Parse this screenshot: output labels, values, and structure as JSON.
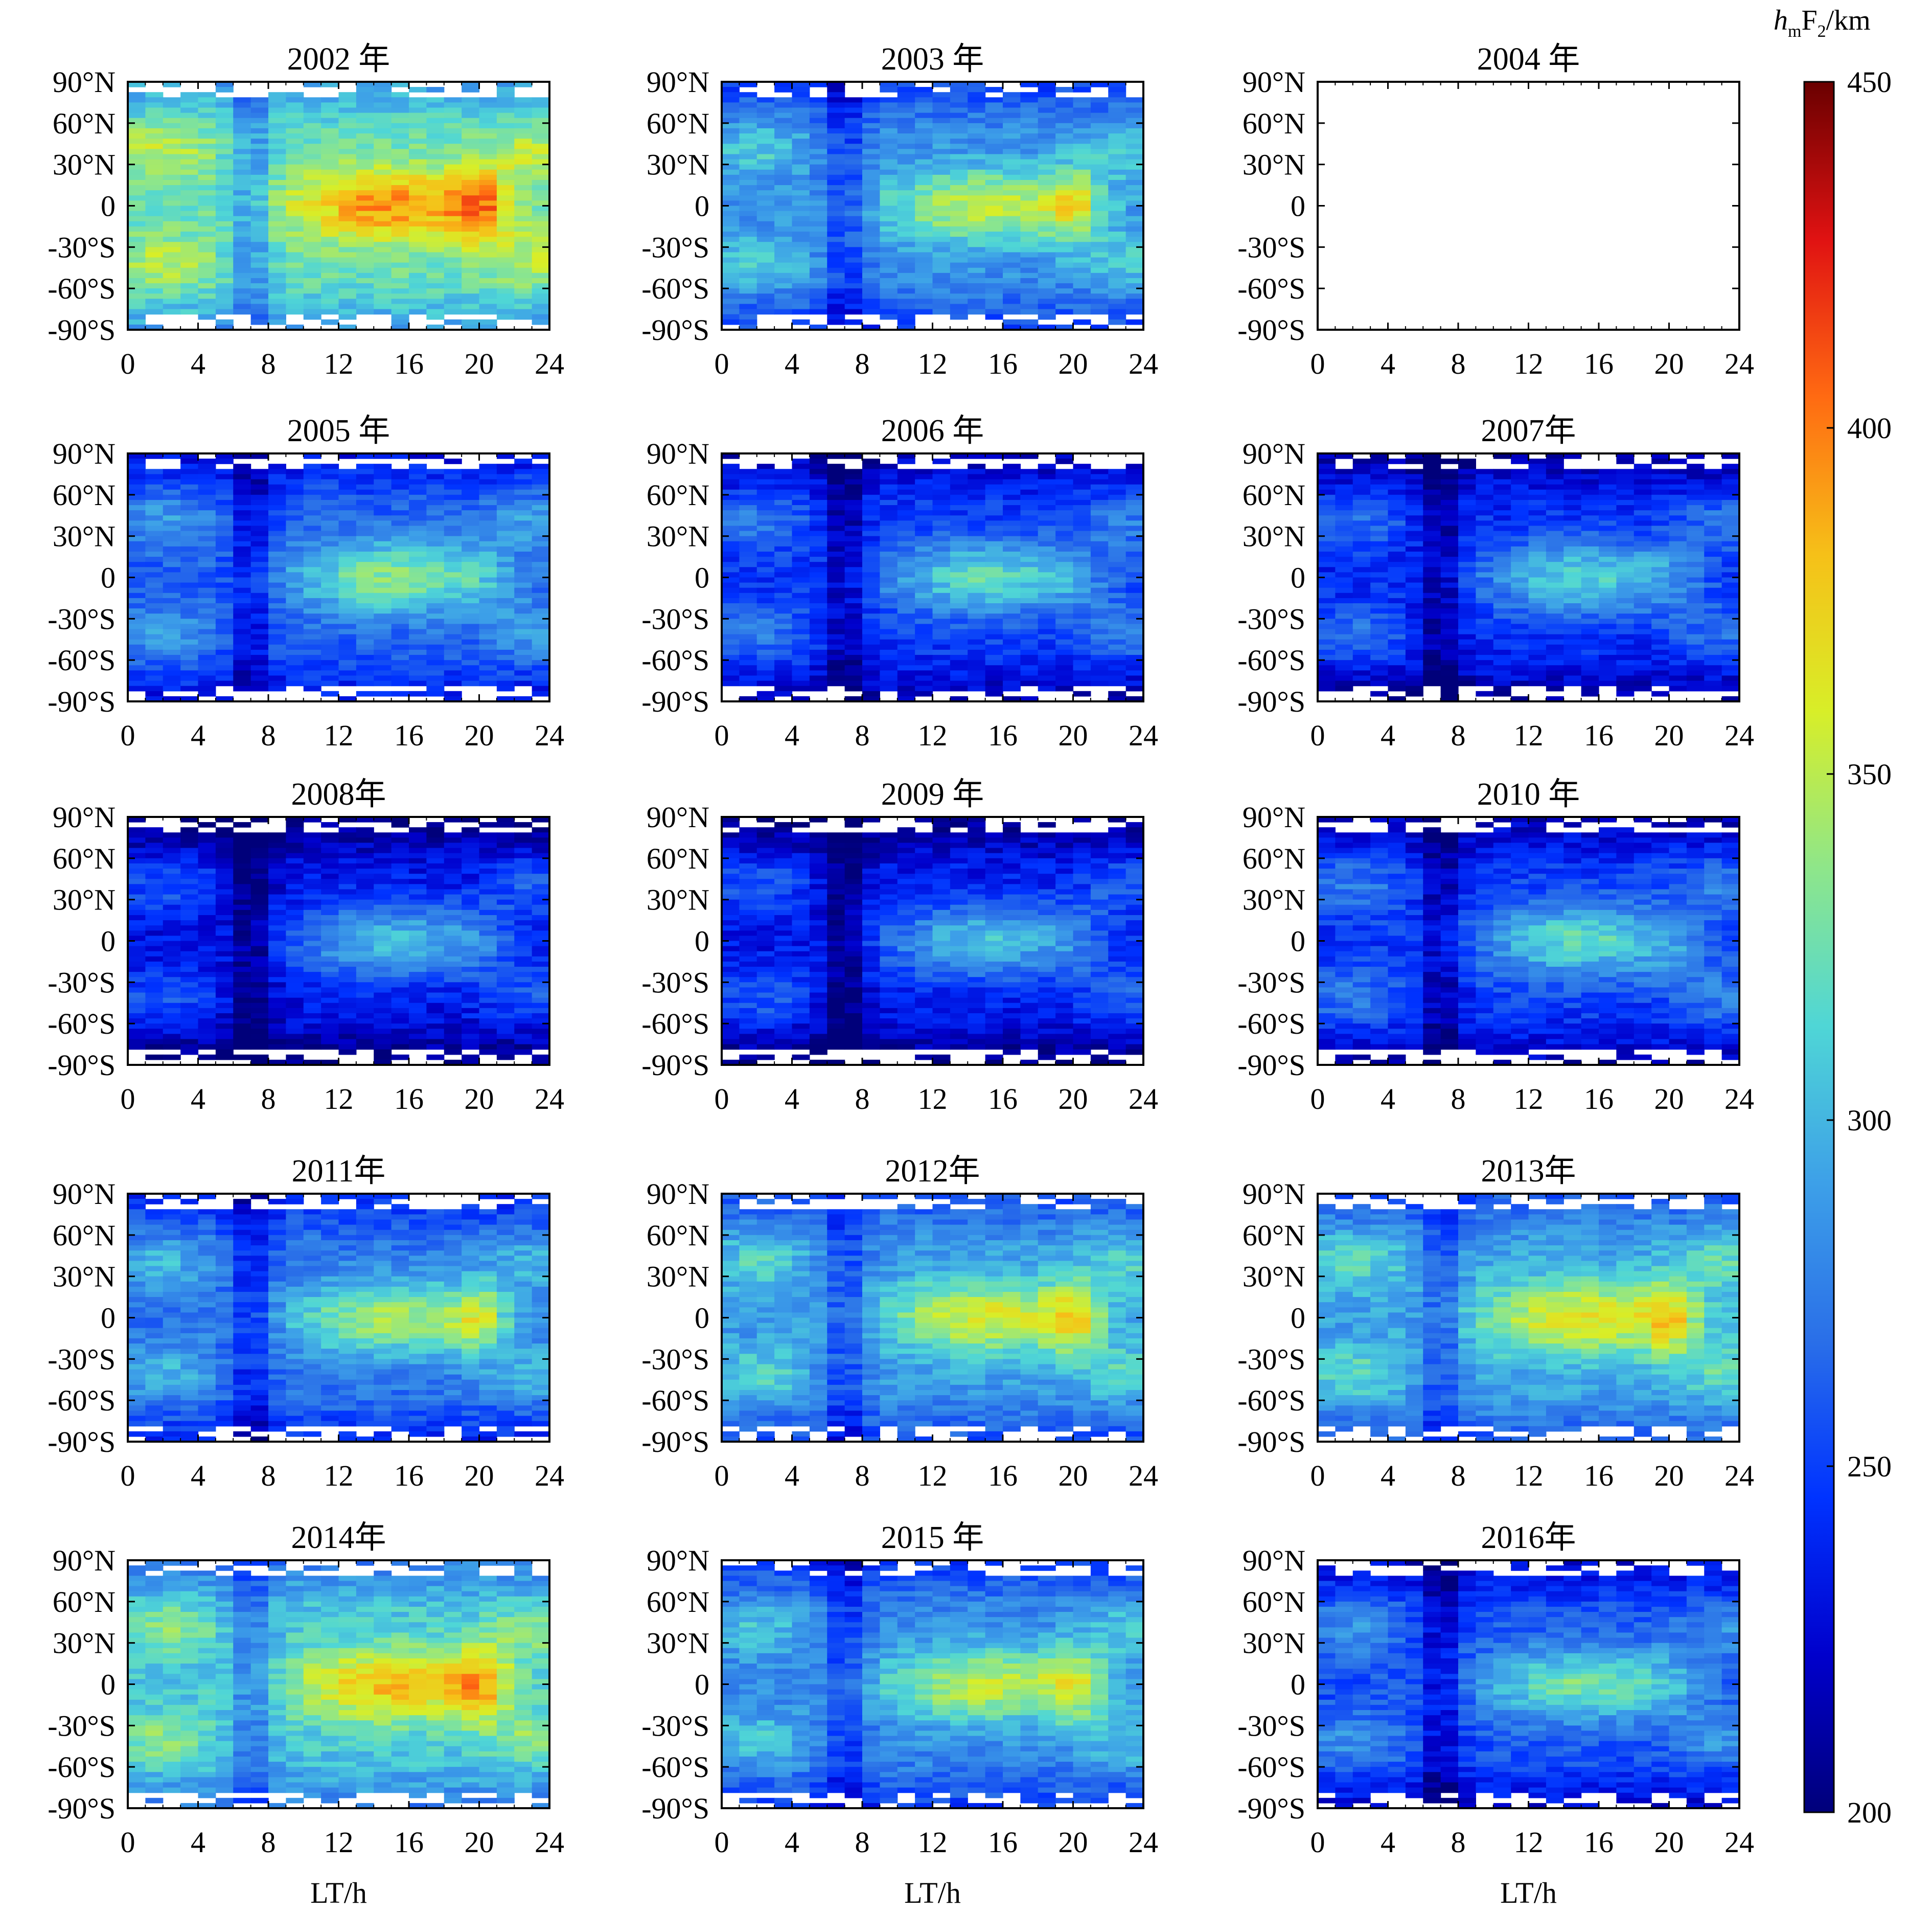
{
  "figure": {
    "x_axis_label": "LT/h",
    "colorbar": {
      "label_main": "h",
      "label_sub": "m",
      "label_rest": "F",
      "label_sub2": "2",
      "label_unit": "/km",
      "min": 200,
      "max": 450,
      "ticks": [
        200,
        250,
        300,
        350,
        400,
        450
      ],
      "tick_labels": [
        "200",
        "250",
        "300",
        "350",
        "400",
        "450"
      ],
      "palette": [
        "#00007a",
        "#0000cc",
        "#0033ff",
        "#2a6fe8",
        "#3da0e8",
        "#4fd6d6",
        "#8ee68a",
        "#d8ee28",
        "#f6c018",
        "#ff6a12",
        "#e01212",
        "#6a0000"
      ]
    }
  },
  "chart_data": [
    {
      "type": "heatmap",
      "title": "2002 年",
      "empty": false,
      "level": 360,
      "xlabel": "LT/h",
      "ylabel": "",
      "xlim": [
        0,
        24
      ],
      "ylim": [
        -90,
        90
      ],
      "xticks": [
        0,
        4,
        8,
        12,
        16,
        20,
        24
      ],
      "xtick_labels": [
        "0",
        "4",
        "8",
        "12",
        "16",
        "20",
        "24"
      ],
      "yticks": [
        90,
        60,
        30,
        0,
        -30,
        -60,
        -90
      ],
      "ytick_labels": [
        "90°N",
        "60°N",
        "30°N",
        "0",
        "-30°S",
        "-60°S",
        "-90°S"
      ]
    },
    {
      "type": "heatmap",
      "title": "2003 年",
      "empty": false,
      "level": 320,
      "xlabel": "LT/h",
      "ylabel": "",
      "xlim": [
        0,
        24
      ],
      "ylim": [
        -90,
        90
      ],
      "xticks": [
        0,
        4,
        8,
        12,
        16,
        20,
        24
      ],
      "xtick_labels": [
        "0",
        "4",
        "8",
        "12",
        "16",
        "20",
        "24"
      ],
      "yticks": [
        90,
        60,
        30,
        0,
        -30,
        -60,
        -90
      ],
      "ytick_labels": [
        "90°N",
        "60°N",
        "30°N",
        "0",
        "-30°S",
        "-60°S",
        "-90°S"
      ]
    },
    {
      "type": "heatmap",
      "title": "2004 年",
      "empty": true,
      "level": 0,
      "xlabel": "LT/h",
      "ylabel": "",
      "xlim": [
        0,
        24
      ],
      "ylim": [
        -90,
        90
      ],
      "xticks": [
        0,
        4,
        8,
        12,
        16,
        20,
        24
      ],
      "xtick_labels": [
        "0",
        "4",
        "8",
        "12",
        "16",
        "20",
        "24"
      ],
      "yticks": [
        90,
        60,
        30,
        0,
        -30,
        -60,
        -90
      ],
      "ytick_labels": [
        "90°N",
        "60°N",
        "30°N",
        "0",
        "-30°S",
        "-60°S",
        "-90°S"
      ]
    },
    {
      "type": "heatmap",
      "title": "2005 年",
      "empty": false,
      "level": 300,
      "xlabel": "LT/h",
      "ylabel": "",
      "xlim": [
        0,
        24
      ],
      "ylim": [
        -90,
        90
      ],
      "xticks": [
        0,
        4,
        8,
        12,
        16,
        20,
        24
      ],
      "xtick_labels": [
        "0",
        "4",
        "8",
        "12",
        "16",
        "20",
        "24"
      ],
      "yticks": [
        90,
        60,
        30,
        0,
        -30,
        -60,
        -90
      ],
      "ytick_labels": [
        "90°N",
        "60°N",
        "30°N",
        "0",
        "-30°S",
        "-60°S",
        "-90°S"
      ]
    },
    {
      "type": "heatmap",
      "title": "2006 年",
      "empty": false,
      "level": 285,
      "xlabel": "LT/h",
      "ylabel": "",
      "xlim": [
        0,
        24
      ],
      "ylim": [
        -90,
        90
      ],
      "xticks": [
        0,
        4,
        8,
        12,
        16,
        20,
        24
      ],
      "xtick_labels": [
        "0",
        "4",
        "8",
        "12",
        "16",
        "20",
        "24"
      ],
      "yticks": [
        90,
        60,
        30,
        0,
        -30,
        -60,
        -90
      ],
      "ytick_labels": [
        "90°N",
        "60°N",
        "30°N",
        "0",
        "-30°S",
        "-60°S",
        "-90°S"
      ]
    },
    {
      "type": "heatmap",
      "title": "2007年",
      "empty": false,
      "level": 280,
      "xlabel": "LT/h",
      "ylabel": "",
      "xlim": [
        0,
        24
      ],
      "ylim": [
        -90,
        90
      ],
      "xticks": [
        0,
        4,
        8,
        12,
        16,
        20,
        24
      ],
      "xtick_labels": [
        "0",
        "4",
        "8",
        "12",
        "16",
        "20",
        "24"
      ],
      "yticks": [
        90,
        60,
        30,
        0,
        -30,
        -60,
        -90
      ],
      "ytick_labels": [
        "90°N",
        "60°N",
        "30°N",
        "0",
        "-30°S",
        "-60°S",
        "-90°S"
      ]
    },
    {
      "type": "heatmap",
      "title": "2008年",
      "empty": false,
      "level": 270,
      "xlabel": "LT/h",
      "ylabel": "",
      "xlim": [
        0,
        24
      ],
      "ylim": [
        -90,
        90
      ],
      "xticks": [
        0,
        4,
        8,
        12,
        16,
        20,
        24
      ],
      "xtick_labels": [
        "0",
        "4",
        "8",
        "12",
        "16",
        "20",
        "24"
      ],
      "yticks": [
        90,
        60,
        30,
        0,
        -30,
        -60,
        -90
      ],
      "ytick_labels": [
        "90°N",
        "60°N",
        "30°N",
        "0",
        "-30°S",
        "-60°S",
        "-90°S"
      ]
    },
    {
      "type": "heatmap",
      "title": "2009 年",
      "empty": false,
      "level": 272,
      "xlabel": "LT/h",
      "ylabel": "",
      "xlim": [
        0,
        24
      ],
      "ylim": [
        -90,
        90
      ],
      "xticks": [
        0,
        4,
        8,
        12,
        16,
        20,
        24
      ],
      "xtick_labels": [
        "0",
        "4",
        "8",
        "12",
        "16",
        "20",
        "24"
      ],
      "yticks": [
        90,
        60,
        30,
        0,
        -30,
        -60,
        -90
      ],
      "ytick_labels": [
        "90°N",
        "60°N",
        "30°N",
        "0",
        "-30°S",
        "-60°S",
        "-90°S"
      ]
    },
    {
      "type": "heatmap",
      "title": "2010 年",
      "empty": false,
      "level": 285,
      "xlabel": "LT/h",
      "ylabel": "",
      "xlim": [
        0,
        24
      ],
      "ylim": [
        -90,
        90
      ],
      "xticks": [
        0,
        4,
        8,
        12,
        16,
        20,
        24
      ],
      "xtick_labels": [
        "0",
        "4",
        "8",
        "12",
        "16",
        "20",
        "24"
      ],
      "yticks": [
        90,
        60,
        30,
        0,
        -30,
        -60,
        -90
      ],
      "ytick_labels": [
        "90°N",
        "60°N",
        "30°N",
        "0",
        "-30°S",
        "-60°S",
        "-90°S"
      ]
    },
    {
      "type": "heatmap",
      "title": "2011年",
      "empty": false,
      "level": 310,
      "xlabel": "LT/h",
      "ylabel": "",
      "xlim": [
        0,
        24
      ],
      "ylim": [
        -90,
        90
      ],
      "xticks": [
        0,
        4,
        8,
        12,
        16,
        20,
        24
      ],
      "xtick_labels": [
        "0",
        "4",
        "8",
        "12",
        "16",
        "20",
        "24"
      ],
      "yticks": [
        90,
        60,
        30,
        0,
        -30,
        -60,
        -90
      ],
      "ytick_labels": [
        "90°N",
        "60°N",
        "30°N",
        "0",
        "-30°S",
        "-60°S",
        "-90°S"
      ]
    },
    {
      "type": "heatmap",
      "title": "2012年",
      "empty": false,
      "level": 325,
      "xlabel": "LT/h",
      "ylabel": "",
      "xlim": [
        0,
        24
      ],
      "ylim": [
        -90,
        90
      ],
      "xticks": [
        0,
        4,
        8,
        12,
        16,
        20,
        24
      ],
      "xtick_labels": [
        "0",
        "4",
        "8",
        "12",
        "16",
        "20",
        "24"
      ],
      "yticks": [
        90,
        60,
        30,
        0,
        -30,
        -60,
        -90
      ],
      "ytick_labels": [
        "90°N",
        "60°N",
        "30°N",
        "0",
        "-30°S",
        "-60°S",
        "-90°S"
      ]
    },
    {
      "type": "heatmap",
      "title": "2013年",
      "empty": false,
      "level": 330,
      "xlabel": "LT/h",
      "ylabel": "",
      "xlim": [
        0,
        24
      ],
      "ylim": [
        -90,
        90
      ],
      "xticks": [
        0,
        4,
        8,
        12,
        16,
        20,
        24
      ],
      "xtick_labels": [
        "0",
        "4",
        "8",
        "12",
        "16",
        "20",
        "24"
      ],
      "yticks": [
        90,
        60,
        30,
        0,
        -30,
        -60,
        -90
      ],
      "ytick_labels": [
        "90°N",
        "60°N",
        "30°N",
        "0",
        "-30°S",
        "-60°S",
        "-90°S"
      ]
    },
    {
      "type": "heatmap",
      "title": "2014年",
      "empty": false,
      "level": 345,
      "xlabel": "LT/h",
      "ylabel": "",
      "xlim": [
        0,
        24
      ],
      "ylim": [
        -90,
        90
      ],
      "xticks": [
        0,
        4,
        8,
        12,
        16,
        20,
        24
      ],
      "xtick_labels": [
        "0",
        "4",
        "8",
        "12",
        "16",
        "20",
        "24"
      ],
      "yticks": [
        90,
        60,
        30,
        0,
        -30,
        -60,
        -90
      ],
      "ytick_labels": [
        "90°N",
        "60°N",
        "30°N",
        "0",
        "-30°S",
        "-60°S",
        "-90°S"
      ]
    },
    {
      "type": "heatmap",
      "title": "2015 年",
      "empty": false,
      "level": 318,
      "xlabel": "LT/h",
      "ylabel": "",
      "xlim": [
        0,
        24
      ],
      "ylim": [
        -90,
        90
      ],
      "xticks": [
        0,
        4,
        8,
        12,
        16,
        20,
        24
      ],
      "xtick_labels": [
        "0",
        "4",
        "8",
        "12",
        "16",
        "20",
        "24"
      ],
      "yticks": [
        90,
        60,
        30,
        0,
        -30,
        -60,
        -90
      ],
      "ytick_labels": [
        "90°N",
        "60°N",
        "30°N",
        "0",
        "-30°S",
        "-60°S",
        "-90°S"
      ]
    },
    {
      "type": "heatmap",
      "title": "2016年",
      "empty": false,
      "level": 295,
      "xlabel": "LT/h",
      "ylabel": "",
      "xlim": [
        0,
        24
      ],
      "ylim": [
        -90,
        90
      ],
      "xticks": [
        0,
        4,
        8,
        12,
        16,
        20,
        24
      ],
      "xtick_labels": [
        "0",
        "4",
        "8",
        "12",
        "16",
        "20",
        "24"
      ],
      "yticks": [
        90,
        60,
        30,
        0,
        -30,
        -60,
        -90
      ],
      "ytick_labels": [
        "90°N",
        "60°N",
        "30°N",
        "0",
        "-30°S",
        "-60°S",
        "-90°S"
      ]
    }
  ]
}
